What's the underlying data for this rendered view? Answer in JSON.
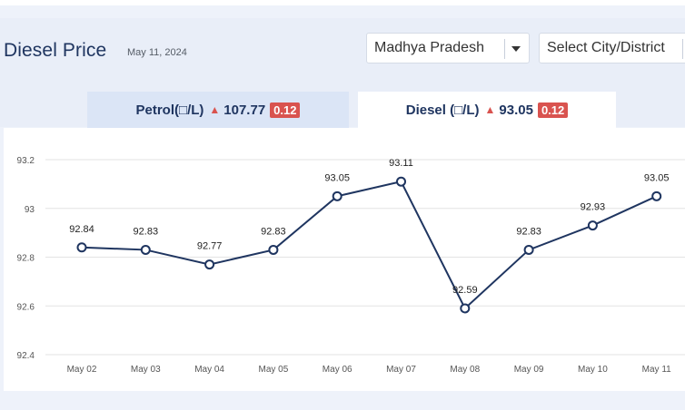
{
  "header": {
    "title": "Diesel Price",
    "date": "May 11, 2024"
  },
  "filters": {
    "state": "Madhya Pradesh",
    "city_placeholder": "Select City/District"
  },
  "tabs": [
    {
      "label": "Petrol(□/L)",
      "price": "107.77",
      "change": "0.12",
      "active": false
    },
    {
      "label": "Diesel (□/L)",
      "price": "93.05",
      "change": "0.12",
      "active": true
    }
  ],
  "colors": {
    "line": "#1f3560",
    "change_badge": "#d9534f",
    "title": "#1f3560"
  },
  "chart_data": {
    "type": "line",
    "categories": [
      "May 02",
      "May 03",
      "May 04",
      "May 05",
      "May 06",
      "May 07",
      "May 08",
      "May 09",
      "May 10",
      "May 11"
    ],
    "values": [
      92.84,
      92.83,
      92.77,
      92.83,
      93.05,
      93.11,
      92.59,
      92.83,
      92.93,
      93.05
    ],
    "data_labels": [
      "92.84",
      "92.83",
      "92.77",
      "92.83",
      "93.05",
      "93.11",
      "92.59",
      "92.83",
      "92.93",
      "93.05"
    ],
    "y_ticks": [
      "92.4",
      "92.6",
      "92.8",
      "93",
      "93.2"
    ],
    "ylim": [
      92.4,
      93.2
    ],
    "grid": true,
    "title": "",
    "xlabel": "",
    "ylabel": ""
  }
}
